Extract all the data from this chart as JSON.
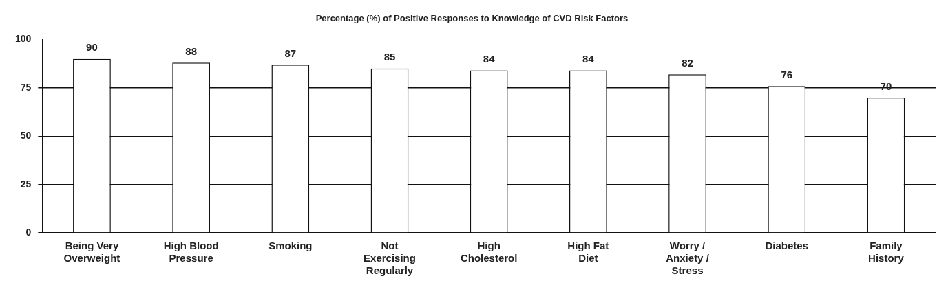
{
  "chart_data": {
    "type": "bar",
    "title": "Percentage (%) of Positive Responses to Knowledge of CVD Risk Factors",
    "categories": [
      "Being Very\nOverweight",
      "High Blood\nPressure",
      "Smoking",
      "Not\nExercising\nRegularly",
      "High\nCholesterol",
      "High Fat\nDiet",
      "Worry /\nAnxiety /\nStress",
      "Diabetes",
      "Family\nHistory"
    ],
    "values": [
      90,
      88,
      87,
      85,
      84,
      84,
      82,
      76,
      70
    ],
    "color": "#ffffff",
    "ylim": [
      0,
      100
    ],
    "yticks": [
      0,
      25,
      50,
      75,
      100
    ],
    "grid": "y",
    "data_labels": true
  }
}
